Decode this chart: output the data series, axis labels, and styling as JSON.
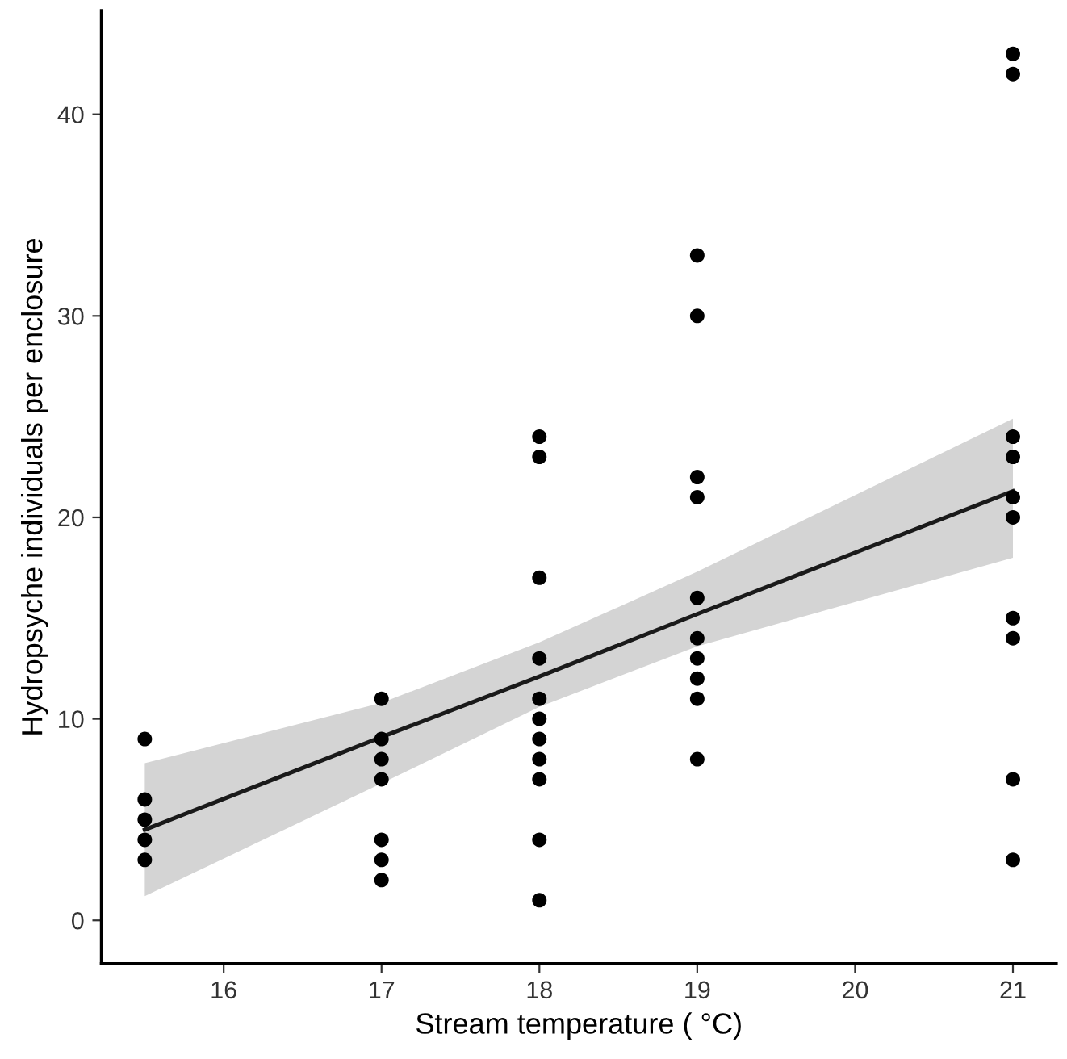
{
  "chart_data": {
    "type": "scatter",
    "xlabel": "Stream temperature ( °C)",
    "ylabel": "Hydropsyche individuals per enclosure",
    "xlim": [
      15.225,
      21.275
    ],
    "ylim": [
      -2.15,
      45.15
    ],
    "xticks": [
      16,
      17,
      18,
      19,
      20,
      21
    ],
    "yticks": [
      0,
      10,
      20,
      30,
      40
    ],
    "grid": false,
    "legend": false,
    "series": [
      {
        "type": "line",
        "color": "#1a1a1a",
        "x": [
          15.5,
          17,
          18,
          19,
          21
        ],
        "values": [
          4.5,
          9.1,
          12.1,
          15.2,
          21.3
        ],
        "lower": [
          1.2,
          6.8,
          10.6,
          13.6,
          18.0
        ],
        "upper": [
          7.8,
          10.8,
          13.8,
          17.3,
          24.9
        ]
      },
      {
        "color": "#000000",
        "marker": "circle",
        "x": [
          15.5,
          15.5,
          15.5,
          15.5,
          15.5,
          17,
          17,
          17,
          17,
          17,
          17,
          17,
          18,
          18,
          18,
          18,
          18,
          18,
          18,
          18,
          18,
          18,
          18,
          19,
          19,
          19,
          19,
          19,
          19,
          19,
          19,
          19,
          19,
          21,
          21,
          21,
          21,
          21,
          21,
          21,
          21,
          21,
          21
        ],
        "values": [
          9,
          6,
          5,
          4,
          3,
          11,
          9,
          8,
          7,
          4,
          3,
          2,
          24,
          23,
          17,
          13,
          11,
          10,
          9,
          8,
          7,
          4,
          1,
          33,
          30,
          22,
          21,
          16,
          14,
          13,
          12,
          11,
          8,
          43,
          42,
          24,
          23,
          21,
          20,
          15,
          14,
          7,
          3
        ]
      }
    ]
  }
}
